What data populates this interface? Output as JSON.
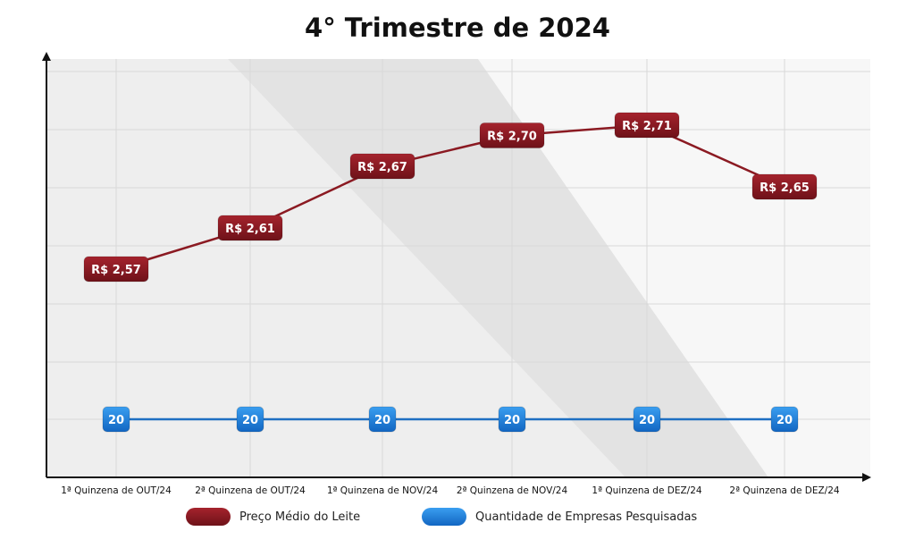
{
  "chart_data": {
    "type": "line",
    "title": "4° Trimestre de 2024",
    "categories": [
      "1ª Quinzena de OUT/24",
      "2ª Quinzena de OUT/24",
      "1ª Quinzena de NOV/24",
      "2ª Quinzena de NOV/24",
      "1ª Quinzena de DEZ/24",
      "2ª Quinzena de DEZ/24"
    ],
    "series": [
      {
        "name": "Preço Médio do Leite",
        "values": [
          2.57,
          2.61,
          2.67,
          2.7,
          2.71,
          2.65
        ],
        "labels": [
          "R$ 2,57",
          "R$ 2,61",
          "R$ 2,67",
          "R$ 2,70",
          "R$ 2,71",
          "R$ 2,65"
        ],
        "color": "#8b1a22"
      },
      {
        "name": "Quantidade de Empresas Pesquisadas",
        "values": [
          20,
          20,
          20,
          20,
          20,
          20
        ],
        "labels": [
          "20",
          "20",
          "20",
          "20",
          "20",
          "20"
        ],
        "color": "#1e7fd8"
      }
    ],
    "grid": true,
    "legend_position": "bottom"
  }
}
